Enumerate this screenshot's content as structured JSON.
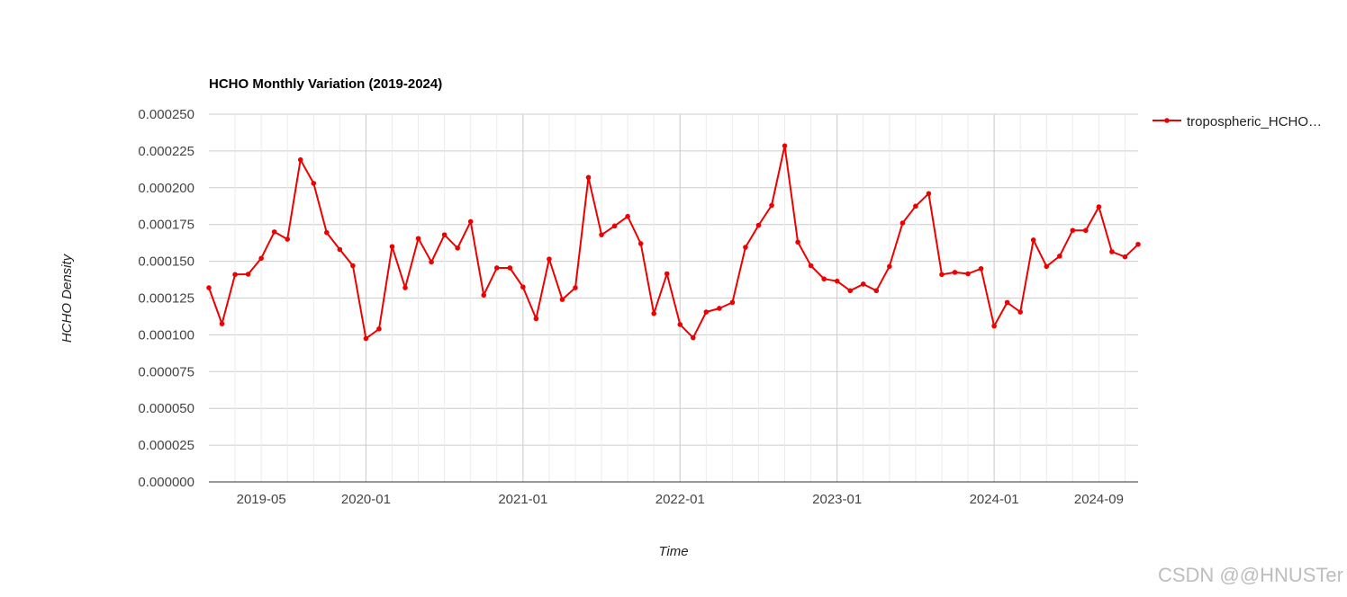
{
  "chart_data": {
    "type": "line",
    "title": "HCHO Monthly Variation (2019-2024)",
    "xlabel": "Time",
    "ylabel": "HCHO Density",
    "ylim": [
      0,
      0.00025
    ],
    "yticks": [
      "0.000000",
      "0.000025",
      "0.000050",
      "0.000075",
      "0.000100",
      "0.000125",
      "0.000150",
      "0.000175",
      "0.000200",
      "0.000225",
      "0.000250"
    ],
    "xticks": [
      "2019-05",
      "2020-01",
      "2021-01",
      "2022-01",
      "2023-01",
      "2024-01",
      "2024-09"
    ],
    "x_start": "2019-01",
    "x_end": "2024-12",
    "grid": true,
    "legend_position": "right",
    "series": [
      {
        "name": "tropospheric_HCHO…",
        "color": "#ee0000",
        "x": [
          "2019-01",
          "2019-02",
          "2019-03",
          "2019-04",
          "2019-05",
          "2019-06",
          "2019-07",
          "2019-08",
          "2019-09",
          "2019-10",
          "2019-11",
          "2019-12",
          "2020-01",
          "2020-02",
          "2020-03",
          "2020-04",
          "2020-05",
          "2020-06",
          "2020-07",
          "2020-08",
          "2020-09",
          "2020-10",
          "2020-11",
          "2020-12",
          "2021-01",
          "2021-02",
          "2021-03",
          "2021-04",
          "2021-05",
          "2021-06",
          "2021-07",
          "2021-08",
          "2021-09",
          "2021-10",
          "2021-11",
          "2021-12",
          "2022-01",
          "2022-02",
          "2022-03",
          "2022-04",
          "2022-05",
          "2022-06",
          "2022-07",
          "2022-08",
          "2022-09",
          "2022-10",
          "2022-11",
          "2022-12",
          "2023-01",
          "2023-02",
          "2023-03",
          "2023-04",
          "2023-05",
          "2023-06",
          "2023-07",
          "2023-08",
          "2023-09",
          "2023-10",
          "2023-11",
          "2023-12",
          "2024-01",
          "2024-02",
          "2024-03",
          "2024-04",
          "2024-05",
          "2024-06",
          "2024-07",
          "2024-08",
          "2024-09",
          "2024-10",
          "2024-11",
          "2024-12"
        ],
        "values": [
          0.000132,
          0.0001075,
          0.000141,
          0.0001412,
          0.000152,
          0.00017,
          0.000165,
          0.000219,
          0.000203,
          0.0001695,
          0.000158,
          0.000147,
          9.75e-05,
          0.000104,
          0.00016,
          0.000132,
          0.0001655,
          0.0001495,
          0.000168,
          0.000159,
          0.000177,
          0.000127,
          0.0001455,
          0.0001455,
          0.0001325,
          0.000111,
          0.0001515,
          0.000124,
          0.000132,
          0.000207,
          0.000168,
          0.000174,
          0.0001805,
          0.000162,
          0.0001145,
          0.0001415,
          0.000107,
          9.8e-05,
          0.0001155,
          0.000118,
          0.000122,
          0.0001595,
          0.0001745,
          0.000188,
          0.0002285,
          0.000163,
          0.000147,
          0.000138,
          0.0001365,
          0.00013,
          0.0001345,
          0.00013,
          0.0001465,
          0.000176,
          0.0001875,
          0.000196,
          0.000141,
          0.0001425,
          0.0001415,
          0.000145,
          0.000106,
          0.000122,
          0.0001155,
          0.0001645,
          0.0001465,
          0.0001535,
          0.000171,
          0.000171,
          0.000187,
          0.0001565,
          0.000153,
          0.0001615
        ]
      }
    ]
  },
  "watermark": "CSDN @@HNUSTer"
}
